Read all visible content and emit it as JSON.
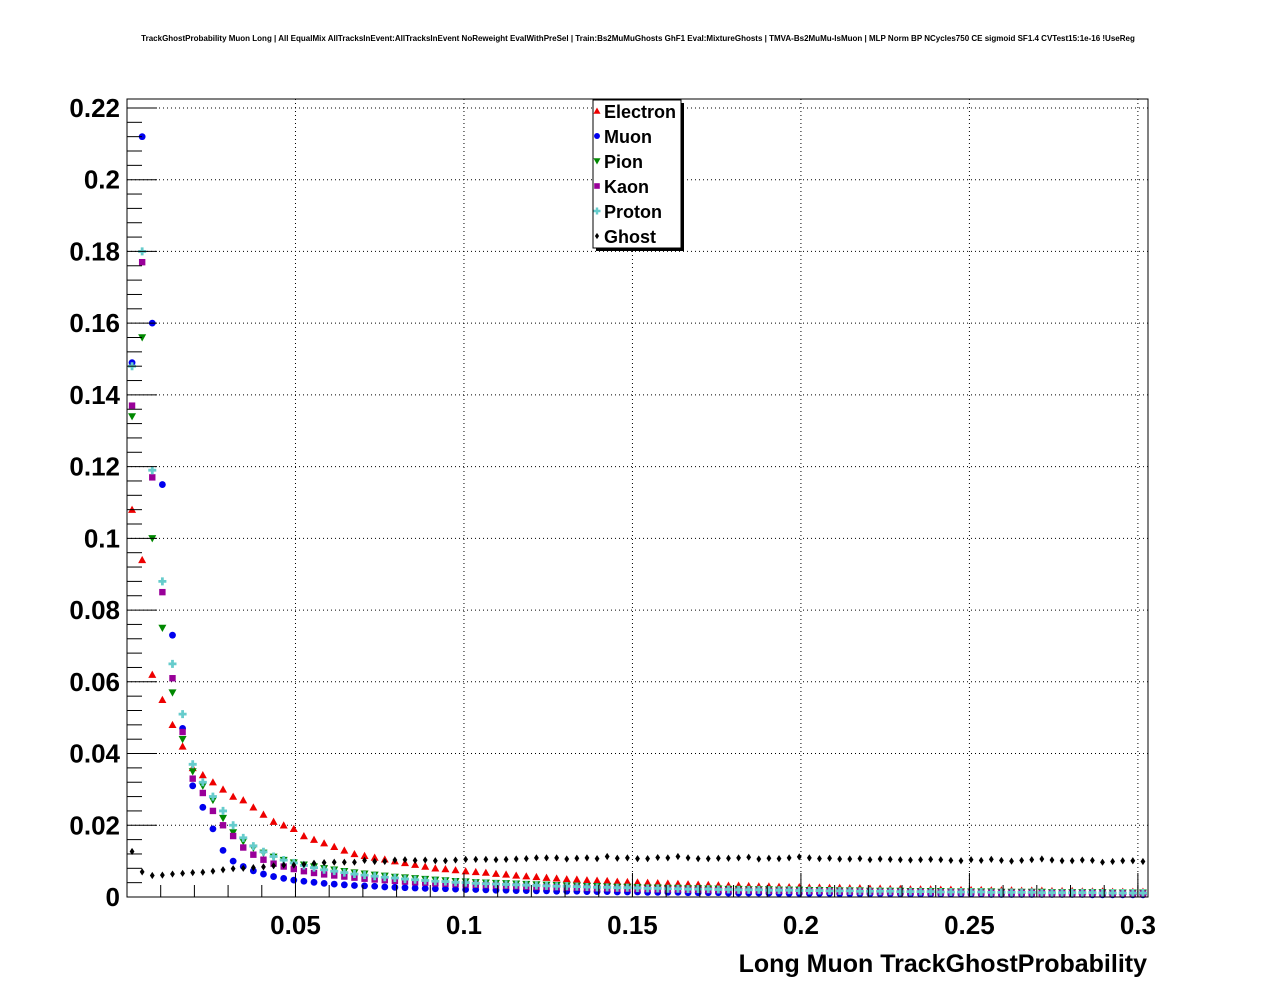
{
  "page": {
    "title": "TrackGhostProbability Muon Long | All EqualMix AllTracksInEvent:AllTracksInEvent NoReweight EvalWithPreSel | Train:Bs2MuMuGhosts GhF1 Eval:MixtureGhosts | TMVA-Bs2MuMu-IsMuon | MLP Norm BP NCycles750 CE sigmoid SF1.4 CVTest15:1e-16 !UseReg"
  },
  "chart_data": {
    "type": "scatter",
    "title": "TrackGhostProbability Muon Long | All EqualMix AllTracksInEvent:AllTracksInEvent NoReweight EvalWithPreSel | Train:Bs2MuMuGhosts GhF1 Eval:MixtureGhosts | TMVA-Bs2MuMu-IsMuon | MLP Norm BP NCycles750 CE sigmoid SF1.4 CVTest15:1e-16 !UseReg",
    "xlabel": "Long Muon TrackGhostProbability",
    "ylabel": "",
    "xlim": [
      0,
      0.303
    ],
    "ylim": [
      0,
      0.2225
    ],
    "grid": true,
    "legend_position": "top-center",
    "x_ticks": [
      {
        "value": 0.05,
        "label": "0.05"
      },
      {
        "value": 0.1,
        "label": "0.1"
      },
      {
        "value": 0.15,
        "label": "0.15"
      },
      {
        "value": 0.2,
        "label": "0.2"
      },
      {
        "value": 0.25,
        "label": "0.25"
      },
      {
        "value": 0.3,
        "label": "0.3"
      }
    ],
    "y_ticks": [
      {
        "value": 0,
        "label": "0"
      },
      {
        "value": 0.02,
        "label": "0.02"
      },
      {
        "value": 0.04,
        "label": "0.04"
      },
      {
        "value": 0.06,
        "label": "0.06"
      },
      {
        "value": 0.08,
        "label": "0.08"
      },
      {
        "value": 0.1,
        "label": "0.1"
      },
      {
        "value": 0.12,
        "label": "0.12"
      },
      {
        "value": 0.14,
        "label": "0.14"
      },
      {
        "value": 0.16,
        "label": "0.16"
      },
      {
        "value": 0.18,
        "label": "0.18"
      },
      {
        "value": 0.2,
        "label": "0.2"
      },
      {
        "value": 0.22,
        "label": "0.22"
      }
    ],
    "bins": {
      "first_center": 0.0015,
      "width": 0.003
    },
    "series": [
      {
        "name": "Electron",
        "color": "#ee0000",
        "marker": "triangle-up",
        "values": [
          0.108,
          0.094,
          0.062,
          0.055,
          0.048,
          0.042,
          0.036,
          0.034,
          0.032,
          0.03,
          0.028,
          0.027,
          0.025,
          0.023,
          0.021,
          0.02,
          0.019,
          0.017,
          0.016,
          0.015,
          0.014,
          0.013,
          0.012,
          0.0115,
          0.011,
          0.0105,
          0.01,
          0.0095,
          0.009,
          0.0085,
          0.008,
          0.0078,
          0.0075,
          0.0072,
          0.007,
          0.0068,
          0.0065,
          0.0063,
          0.006,
          0.0058,
          0.0056,
          0.0054,
          0.0052,
          0.005,
          0.0049,
          0.0047,
          0.0046,
          0.0045,
          0.0043,
          0.0042,
          0.0041,
          0.004,
          0.0039,
          0.0038,
          0.0037,
          0.0036,
          0.0035,
          0.0034,
          0.0033,
          0.0032,
          0.0032,
          0.0031,
          0.003,
          0.003,
          0.0029,
          0.0028,
          0.0028,
          0.0027,
          0.0027,
          0.0026,
          0.0026,
          0.0025,
          0.0025,
          0.0024,
          0.0024,
          0.0023,
          0.0023,
          0.0022,
          0.0022,
          0.0022,
          0.0021,
          0.0021,
          0.002,
          0.002,
          0.002,
          0.0019,
          0.0019,
          0.0019,
          0.0018,
          0.0018,
          0.0018,
          0.0017,
          0.0017,
          0.0017,
          0.0016,
          0.0016,
          0.0016,
          0.0015,
          0.0015,
          0.0015,
          0.0015
        ]
      },
      {
        "name": "Muon",
        "color": "#0000ee",
        "marker": "circle",
        "values": [
          0.149,
          0.212,
          0.16,
          0.115,
          0.073,
          0.047,
          0.031,
          0.025,
          0.019,
          0.013,
          0.01,
          0.0085,
          0.0073,
          0.0064,
          0.0057,
          0.0052,
          0.0047,
          0.0044,
          0.0041,
          0.0038,
          0.0036,
          0.0034,
          0.0032,
          0.0031,
          0.003,
          0.0028,
          0.0027,
          0.0026,
          0.0025,
          0.0024,
          0.0023,
          0.0023,
          0.0022,
          0.0021,
          0.0021,
          0.002,
          0.0019,
          0.0019,
          0.0018,
          0.0018,
          0.0017,
          0.0017,
          0.0016,
          0.0016,
          0.0016,
          0.0015,
          0.0015,
          0.0015,
          0.0014,
          0.0014,
          0.0014,
          0.0013,
          0.0013,
          0.0013,
          0.0013,
          0.0012,
          0.0012,
          0.0012,
          0.0012,
          0.0011,
          0.0011,
          0.0011,
          0.0011,
          0.0011,
          0.001,
          0.001,
          0.001,
          0.001,
          0.001,
          0.001,
          0.0009,
          0.0009,
          0.0009,
          0.0009,
          0.0009,
          0.0009,
          0.0009,
          0.0008,
          0.0008,
          0.0008,
          0.0008,
          0.0008,
          0.0008,
          0.0008,
          0.0008,
          0.0007,
          0.0007,
          0.0007,
          0.0007,
          0.0007,
          0.0007,
          0.0007,
          0.0007,
          0.0007,
          0.0007,
          0.0006,
          0.0006,
          0.0006,
          0.0006,
          0.0006,
          0.0006
        ]
      },
      {
        "name": "Pion",
        "color": "#008800",
        "marker": "triangle-down",
        "values": [
          0.134,
          0.156,
          0.1,
          0.075,
          0.057,
          0.044,
          0.035,
          0.031,
          0.027,
          0.022,
          0.018,
          0.0155,
          0.0137,
          0.0123,
          0.0112,
          0.0103,
          0.0096,
          0.009,
          0.0085,
          0.008,
          0.0076,
          0.0072,
          0.0068,
          0.0065,
          0.0062,
          0.0059,
          0.0056,
          0.0054,
          0.0052,
          0.005,
          0.0048,
          0.0046,
          0.0044,
          0.0043,
          0.0041,
          0.004,
          0.0039,
          0.0038,
          0.0037,
          0.0036,
          0.0035,
          0.0034,
          0.0033,
          0.0032,
          0.0031,
          0.003,
          0.003,
          0.0029,
          0.0028,
          0.0028,
          0.0027,
          0.0026,
          0.0026,
          0.0025,
          0.0025,
          0.0024,
          0.0024,
          0.0023,
          0.0023,
          0.0022,
          0.0022,
          0.0021,
          0.0021,
          0.0021,
          0.002,
          0.002,
          0.002,
          0.0019,
          0.0019,
          0.0019,
          0.0018,
          0.0018,
          0.0018,
          0.0017,
          0.0017,
          0.0017,
          0.0017,
          0.0016,
          0.0016,
          0.0016,
          0.0016,
          0.0015,
          0.0015,
          0.0015,
          0.0015,
          0.0015,
          0.0014,
          0.0014,
          0.0014,
          0.0014,
          0.0014,
          0.0013,
          0.0013,
          0.0013,
          0.0013,
          0.0013,
          0.0013,
          0.0012,
          0.0012,
          0.0012,
          0.0012
        ]
      },
      {
        "name": "Kaon",
        "color": "#990099",
        "marker": "square",
        "values": [
          0.137,
          0.177,
          0.117,
          0.085,
          0.061,
          0.046,
          0.033,
          0.029,
          0.024,
          0.02,
          0.017,
          0.0138,
          0.0118,
          0.0104,
          0.0093,
          0.0085,
          0.0078,
          0.0072,
          0.0067,
          0.0063,
          0.006,
          0.0057,
          0.0054,
          0.0051,
          0.0049,
          0.0047,
          0.0045,
          0.0043,
          0.0041,
          0.004,
          0.0038,
          0.0037,
          0.0036,
          0.0035,
          0.0034,
          0.0033,
          0.0032,
          0.0031,
          0.003,
          0.0029,
          0.0028,
          0.0028,
          0.0027,
          0.0026,
          0.0026,
          0.0025,
          0.0024,
          0.0024,
          0.0023,
          0.0023,
          0.0022,
          0.0022,
          0.0021,
          0.0021,
          0.0021,
          0.002,
          0.002,
          0.0019,
          0.0019,
          0.0019,
          0.0018,
          0.0018,
          0.0018,
          0.0017,
          0.0017,
          0.0017,
          0.0016,
          0.0016,
          0.0016,
          0.0016,
          0.0015,
          0.0015,
          0.0015,
          0.0015,
          0.0014,
          0.0014,
          0.0014,
          0.0014,
          0.0014,
          0.0013,
          0.0013,
          0.0013,
          0.0013,
          0.0013,
          0.0012,
          0.0012,
          0.0012,
          0.0012,
          0.0012,
          0.0012,
          0.0011,
          0.0011,
          0.0011,
          0.0011,
          0.0011,
          0.0011,
          0.0011,
          0.001,
          0.001,
          0.001,
          0.001
        ]
      },
      {
        "name": "Proton",
        "color": "#66cccc",
        "marker": "cross",
        "values": [
          0.148,
          0.18,
          0.119,
          0.088,
          0.065,
          0.051,
          0.037,
          0.032,
          0.028,
          0.024,
          0.02,
          0.0165,
          0.0142,
          0.0126,
          0.0113,
          0.0103,
          0.0095,
          0.0088,
          0.0082,
          0.0076,
          0.0072,
          0.0068,
          0.0064,
          0.0061,
          0.0058,
          0.0055,
          0.0053,
          0.005,
          0.0048,
          0.0046,
          0.0044,
          0.0043,
          0.0041,
          0.004,
          0.0038,
          0.0037,
          0.0036,
          0.0035,
          0.0034,
          0.0033,
          0.0032,
          0.0031,
          0.003,
          0.003,
          0.0029,
          0.0028,
          0.0027,
          0.0027,
          0.0026,
          0.0026,
          0.0025,
          0.0024,
          0.0024,
          0.0023,
          0.0023,
          0.0022,
          0.0022,
          0.0022,
          0.0021,
          0.0021,
          0.002,
          0.002,
          0.002,
          0.0019,
          0.0019,
          0.0019,
          0.0018,
          0.0018,
          0.0018,
          0.0017,
          0.0017,
          0.0017,
          0.0016,
          0.0016,
          0.0016,
          0.0016,
          0.0015,
          0.0015,
          0.0015,
          0.0015,
          0.0014,
          0.0014,
          0.0014,
          0.0014,
          0.0014,
          0.0013,
          0.0013,
          0.0013,
          0.0013,
          0.0013,
          0.0012,
          0.0012,
          0.0012,
          0.0012,
          0.0012,
          0.0012,
          0.0011,
          0.0011,
          0.0011,
          0.0011,
          0.0011
        ]
      },
      {
        "name": "Ghost",
        "color": "#000000",
        "marker": "diamond",
        "values": [
          0.0127,
          0.007,
          0.006,
          0.0061,
          0.0064,
          0.0066,
          0.0068,
          0.0069,
          0.0072,
          0.0076,
          0.0079,
          0.008,
          0.0082,
          0.0084,
          0.0087,
          0.0089,
          0.0089,
          0.0091,
          0.0094,
          0.0096,
          0.0097,
          0.0097,
          0.0097,
          0.0102,
          0.0099,
          0.0099,
          0.0103,
          0.0104,
          0.0102,
          0.0103,
          0.0101,
          0.0101,
          0.0103,
          0.0105,
          0.0105,
          0.0105,
          0.0104,
          0.0105,
          0.0106,
          0.0107,
          0.0109,
          0.0109,
          0.0109,
          0.0106,
          0.0108,
          0.0109,
          0.0107,
          0.0113,
          0.0108,
          0.0109,
          0.0107,
          0.0107,
          0.011,
          0.0109,
          0.0113,
          0.0109,
          0.0107,
          0.0107,
          0.0108,
          0.0108,
          0.0109,
          0.0111,
          0.0106,
          0.0108,
          0.0107,
          0.0109,
          0.0112,
          0.0109,
          0.0107,
          0.0108,
          0.0106,
          0.0106,
          0.0107,
          0.0104,
          0.0106,
          0.0105,
          0.0104,
          0.0103,
          0.0104,
          0.0105,
          0.0104,
          0.0102,
          0.0101,
          0.0104,
          0.0102,
          0.0105,
          0.0102,
          0.01,
          0.0102,
          0.0104,
          0.0106,
          0.0103,
          0.0101,
          0.0101,
          0.0103,
          0.0102,
          0.0097,
          0.0099,
          0.0101,
          0.0101,
          0.0099
        ]
      }
    ]
  }
}
